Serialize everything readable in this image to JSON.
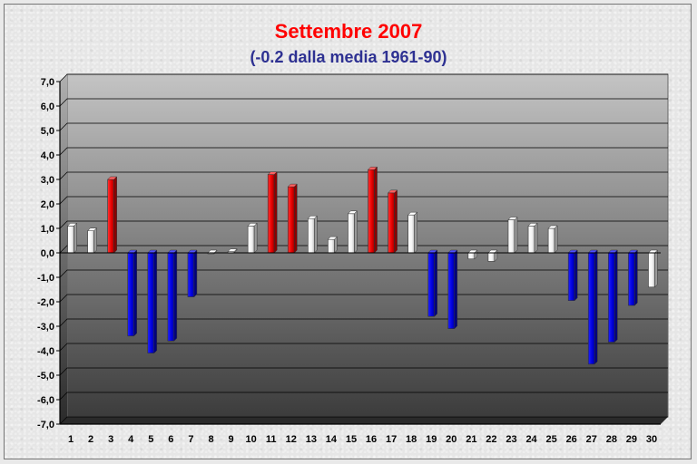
{
  "chart_data": {
    "type": "bar",
    "title": "Settembre 2007",
    "subtitle": "(-0.2 dalla media 1961-90)",
    "xlabel": "",
    "ylabel": "",
    "ylim": [
      -7.0,
      7.0
    ],
    "y_ticks": [
      "7,0",
      "6,0",
      "5,0",
      "4,0",
      "3,0",
      "2,0",
      "1,0",
      "0,0",
      "-1,0",
      "-2,0",
      "-3,0",
      "-4,0",
      "-5,0",
      "-6,0",
      "-7,0"
    ],
    "categories": [
      "1",
      "2",
      "3",
      "4",
      "5",
      "6",
      "7",
      "8",
      "9",
      "10",
      "11",
      "12",
      "13",
      "14",
      "15",
      "16",
      "17",
      "18",
      "19",
      "20",
      "21",
      "22",
      "23",
      "24",
      "25",
      "26",
      "27",
      "28",
      "29",
      "30"
    ],
    "values": [
      1.1,
      0.9,
      3.0,
      -3.4,
      -4.1,
      -3.6,
      -1.8,
      0.0,
      0.05,
      1.1,
      3.2,
      2.7,
      1.4,
      0.55,
      1.6,
      3.4,
      2.45,
      1.55,
      -2.6,
      -3.1,
      -0.25,
      -0.35,
      1.35,
      1.1,
      1.0,
      -1.95,
      -4.55,
      -3.65,
      -2.15,
      -1.4
    ],
    "bar_colors": [
      "white",
      "white",
      "red",
      "blue",
      "blue",
      "blue",
      "blue",
      "white",
      "white",
      "white",
      "red",
      "red",
      "white",
      "white",
      "white",
      "red",
      "red",
      "white",
      "blue",
      "blue",
      "white",
      "white",
      "white",
      "white",
      "white",
      "blue",
      "blue",
      "blue",
      "blue",
      "white"
    ],
    "colors": {
      "red": "#ff1010",
      "blue": "#0000ee",
      "white": "#ffffff",
      "title": "#ff0000",
      "subtitle": "#2e3192"
    },
    "grid": true,
    "legend": "none"
  }
}
